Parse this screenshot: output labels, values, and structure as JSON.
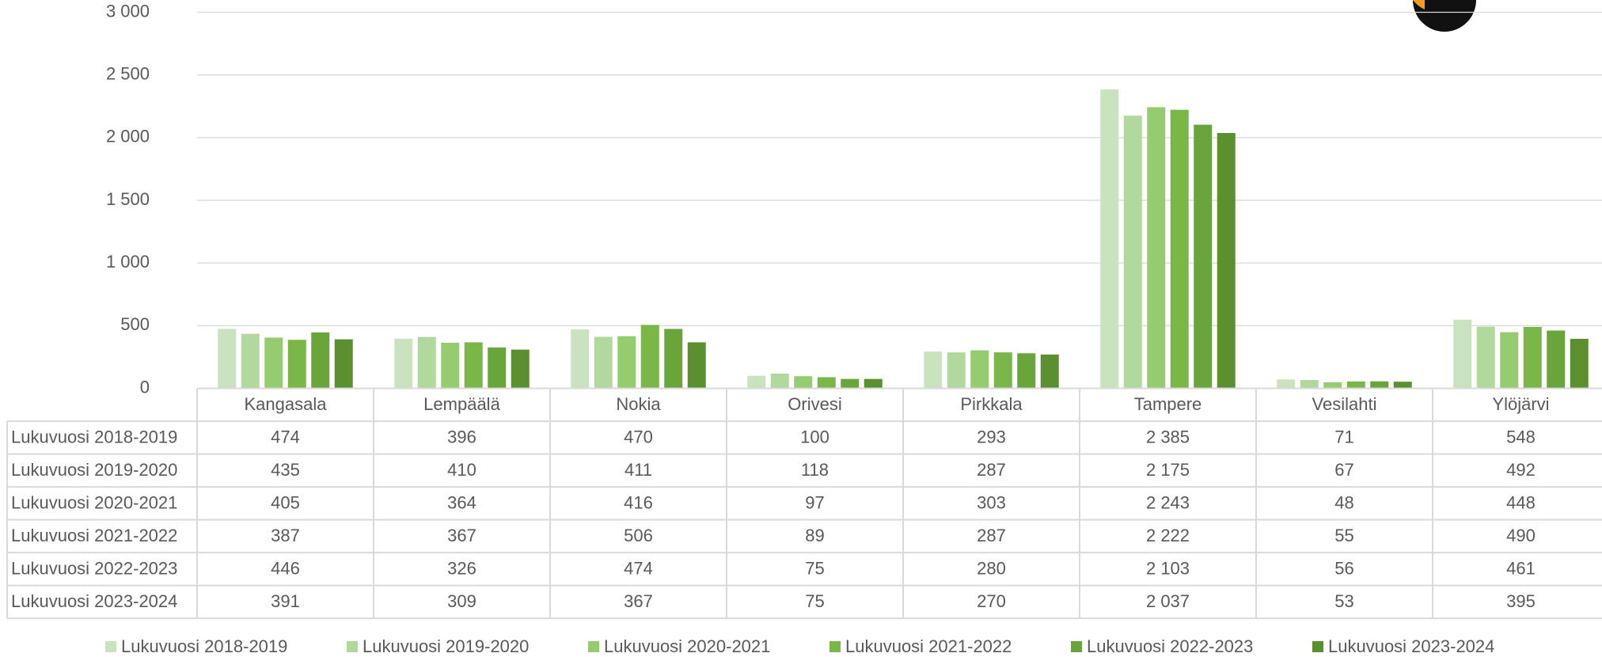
{
  "chart_data": {
    "type": "bar",
    "categories": [
      "Kangasala",
      "Lempäälä",
      "Nokia",
      "Orivesi",
      "Pirkkala",
      "Tampere",
      "Vesilahti",
      "Ylöjärvi"
    ],
    "series": [
      {
        "name": "Lukuvuosi 2018-2019",
        "color": "#c9e3bf",
        "values": [
          474,
          396,
          470,
          100,
          293,
          2385,
          71,
          548
        ],
        "value_labels": [
          "474",
          "396",
          "470",
          "100",
          "293",
          "2 385",
          "71",
          "548"
        ]
      },
      {
        "name": "Lukuvuosi 2019-2020",
        "color": "#b1d89d",
        "values": [
          435,
          410,
          411,
          118,
          287,
          2175,
          67,
          492
        ],
        "value_labels": [
          "435",
          "410",
          "411",
          "118",
          "287",
          "2 175",
          "67",
          "492"
        ]
      },
      {
        "name": "Lukuvuosi 2020-2021",
        "color": "#95cc70",
        "values": [
          405,
          364,
          416,
          97,
          303,
          2243,
          48,
          448
        ],
        "value_labels": [
          "405",
          "364",
          "416",
          "97",
          "303",
          "2 243",
          "48",
          "448"
        ]
      },
      {
        "name": "Lukuvuosi 2021-2022",
        "color": "#7ab648",
        "values": [
          387,
          367,
          506,
          89,
          287,
          2222,
          55,
          490
        ],
        "value_labels": [
          "387",
          "367",
          "506",
          "89",
          "287",
          "2 222",
          "55",
          "490"
        ]
      },
      {
        "name": "Lukuvuosi 2022-2023",
        "color": "#69a53b",
        "values": [
          446,
          326,
          474,
          75,
          280,
          2103,
          56,
          461
        ],
        "value_labels": [
          "446",
          "326",
          "474",
          "75",
          "280",
          "2 103",
          "56",
          "461"
        ]
      },
      {
        "name": "Lukuvuosi 2023-2024",
        "color": "#5b8f30",
        "values": [
          391,
          309,
          367,
          75,
          270,
          2037,
          53,
          395
        ],
        "value_labels": [
          "391",
          "309",
          "367",
          "75",
          "270",
          "2 037",
          "53",
          "395"
        ]
      }
    ],
    "ylim": [
      0,
      3000
    ],
    "yticks": [
      0,
      500,
      {
        "value": 1000,
        "label": "1 000"
      },
      {
        "value": 1500,
        "label": "1 500"
      },
      {
        "value": 2000,
        "label": "2 000"
      },
      {
        "value": 2500,
        "label": "2 500"
      },
      {
        "value": 3000,
        "label": "3 000"
      }
    ],
    "grid": true,
    "legend": "bottom"
  }
}
